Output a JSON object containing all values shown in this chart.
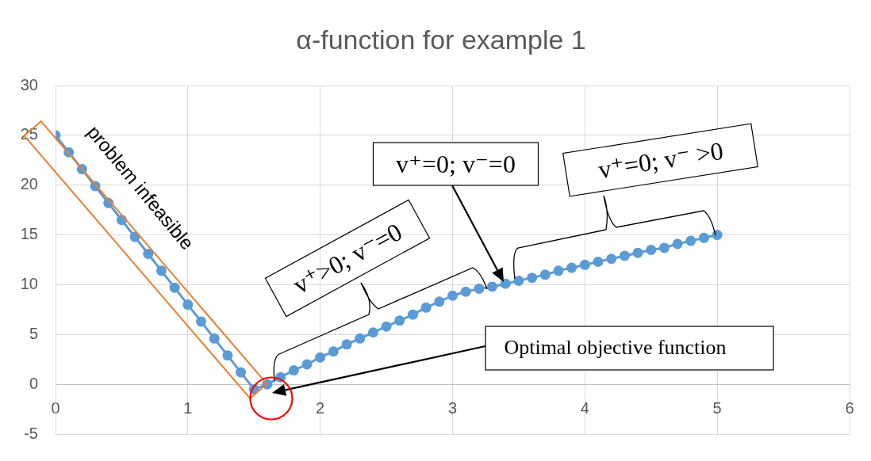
{
  "chart_data": {
    "type": "line",
    "title": "α-function for example 1",
    "x": [
      0,
      0.1,
      0.2,
      0.3,
      0.4,
      0.5,
      0.6,
      0.7,
      0.8,
      0.9,
      1,
      1.1,
      1.2,
      1.3,
      1.4,
      1.5,
      1.6,
      1.7,
      1.8,
      1.9,
      2,
      2.1,
      2.2,
      2.3,
      2.4,
      2.5,
      2.6,
      2.7,
      2.8,
      2.9,
      3,
      3.1,
      3.2,
      3.3,
      3.4,
      3.5,
      3.6,
      3.7,
      3.8,
      3.9,
      4,
      4.1,
      4.2,
      4.3,
      4.4,
      4.5,
      4.6,
      4.7,
      4.8,
      4.9,
      5
    ],
    "values": [
      25,
      23.3,
      21.6,
      19.9,
      18.2,
      16.5,
      14.8,
      13.1,
      11.4,
      9.7,
      8,
      6.3,
      4.6,
      2.9,
      1.2,
      -0.5,
      0,
      0.7,
      1.4,
      2.0,
      2.7,
      3.3,
      4.0,
      4.6,
      5.2,
      5.8,
      6.4,
      7.0,
      7.7,
      8.3,
      8.9,
      9.3,
      9.6,
      9.8,
      10.1,
      10.4,
      10.7,
      11.0,
      11.4,
      11.7,
      12.0,
      12.3,
      12.6,
      12.9,
      13.2,
      13.5,
      13.7,
      14.1,
      14.4,
      14.7,
      15
    ],
    "color": "#5b9bd5",
    "marker": "circle",
    "xlim": [
      0,
      6
    ],
    "xticks": [
      0,
      1,
      2,
      3,
      4,
      5,
      6
    ],
    "ylim": [
      -5,
      30
    ],
    "yticks": [
      -5,
      0,
      5,
      10,
      15,
      20,
      25,
      30
    ],
    "grid": true,
    "annotations": [
      "problem infeasible",
      "v⁺>0; v⁻=0",
      "v⁺=0; v⁻=0",
      "v⁺=0; v⁻ >0",
      "Optimal objective function"
    ]
  }
}
